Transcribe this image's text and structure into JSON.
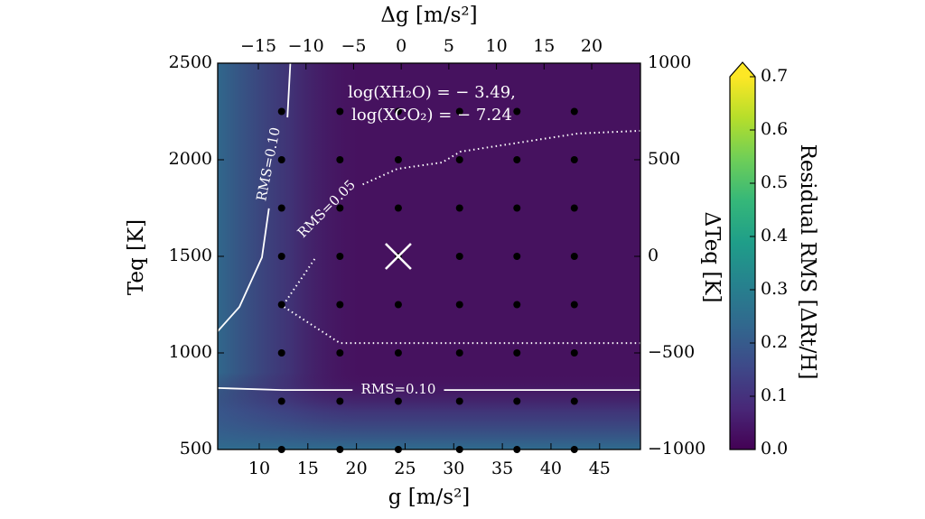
{
  "chart_data": {
    "type": "contour",
    "xlabel": "g [m/s²]",
    "x2label": "Δg [m/s²]",
    "ylabel": "Teq [K]",
    "y2label": "ΔTeq [K]",
    "xlim": [
      5.73,
      49.2
    ],
    "xticks": [
      10,
      15,
      20,
      25,
      30,
      35,
      40,
      45
    ],
    "x2lim": [
      -19.27,
      25.12
    ],
    "x2ticks": [
      {
        "value": -15,
        "label": "−15"
      },
      {
        "value": -10,
        "label": "−10"
      },
      {
        "value": -5,
        "label": "−5"
      },
      0,
      5,
      10,
      15,
      20
    ],
    "ylim": [
      500,
      2500
    ],
    "yticks": [
      500,
      1000,
      1500,
      2000,
      2500
    ],
    "y2lim": [
      -1000,
      1000
    ],
    "y2ticks": [
      {
        "value": -1000,
        "label": "−1000"
      },
      {
        "value": -500,
        "label": "−500"
      },
      0,
      500,
      1000
    ],
    "background_color": "#46125f",
    "colorbar": {
      "label": "Residual RMS [ΔRt/H]",
      "lim": [
        0,
        0.7
      ],
      "ticks": [
        {
          "value": 0,
          "label": "0.0"
        },
        0.1,
        0.2,
        0.3,
        0.4,
        0.5,
        0.6,
        0.7
      ],
      "colors": [
        "#440154",
        "#482878",
        "#3e4989",
        "#31688e",
        "#26828e",
        "#1f9e89",
        "#35b779",
        "#6ece58",
        "#b5de2b",
        "#fde725"
      ]
    },
    "grid_points": {
      "color": "#000000",
      "x": [
        12.3,
        18.3,
        24.3,
        30.6,
        36.5,
        42.4,
        12.3,
        18.3,
        24.3,
        30.6,
        36.5,
        42.4,
        12.3,
        18.3,
        24.3,
        30.6,
        36.5,
        42.4,
        12.3,
        18.3,
        24.3,
        30.6,
        36.5,
        42.4,
        12.3,
        18.3,
        24.3,
        30.6,
        36.5,
        42.4,
        12.3,
        18.3,
        24.3,
        30.6,
        36.5,
        42.4,
        12.3,
        18.3,
        24.3,
        30.6,
        36.5,
        42.4,
        12.3,
        18.3,
        24.3,
        30.6,
        36.5,
        42.4
      ],
      "y": [
        2250,
        2250,
        2250,
        2250,
        2250,
        2250,
        2000,
        2000,
        2000,
        2000,
        2000,
        2000,
        1750,
        1750,
        1750,
        1750,
        1750,
        1750,
        1500,
        1500,
        1500,
        1500,
        1500,
        1500,
        1250,
        1250,
        1250,
        1250,
        1250,
        1250,
        1000,
        1000,
        1000,
        1000,
        1000,
        1000,
        750,
        750,
        750,
        750,
        750,
        750,
        500,
        500,
        500,
        500,
        500,
        500
      ]
    },
    "best_fit": {
      "x": 24.3,
      "y": 1500,
      "color": "#ffffff"
    },
    "contours": [
      {
        "label": "RMS=0.10",
        "style": "solid",
        "color": "#ffffff",
        "x": [
          5.73,
          7.96,
          10.28,
          11.0,
          null,
          12.9,
          13.2
        ],
        "y": [
          1112,
          1238,
          1495,
          1748,
          null,
          2219,
          2500
        ]
      },
      {
        "label": "RMS=0.05",
        "style": "dotted",
        "color": "#ffffff",
        "x": [
          49.2,
          42.8,
          30.7,
          28.8,
          24.2,
          20.5,
          null,
          15.7,
          12.4,
          18.3,
          49.2
        ],
        "y": [
          2150,
          2136,
          2042,
          1986,
          1953,
          1869,
          null,
          1486,
          1243,
          1051,
          1051
        ]
      },
      {
        "label": "RMS=0.10",
        "style": "solid",
        "color": "#ffffff",
        "x": [
          5.73,
          12.4,
          19.6,
          null,
          29.0,
          49.2
        ],
        "y": [
          818,
          808,
          808,
          null,
          808,
          808
        ]
      }
    ],
    "annotation": [
      "log(XH₂O) = − 3.49,",
      "log(XCO₂) = − 7.24"
    ]
  }
}
